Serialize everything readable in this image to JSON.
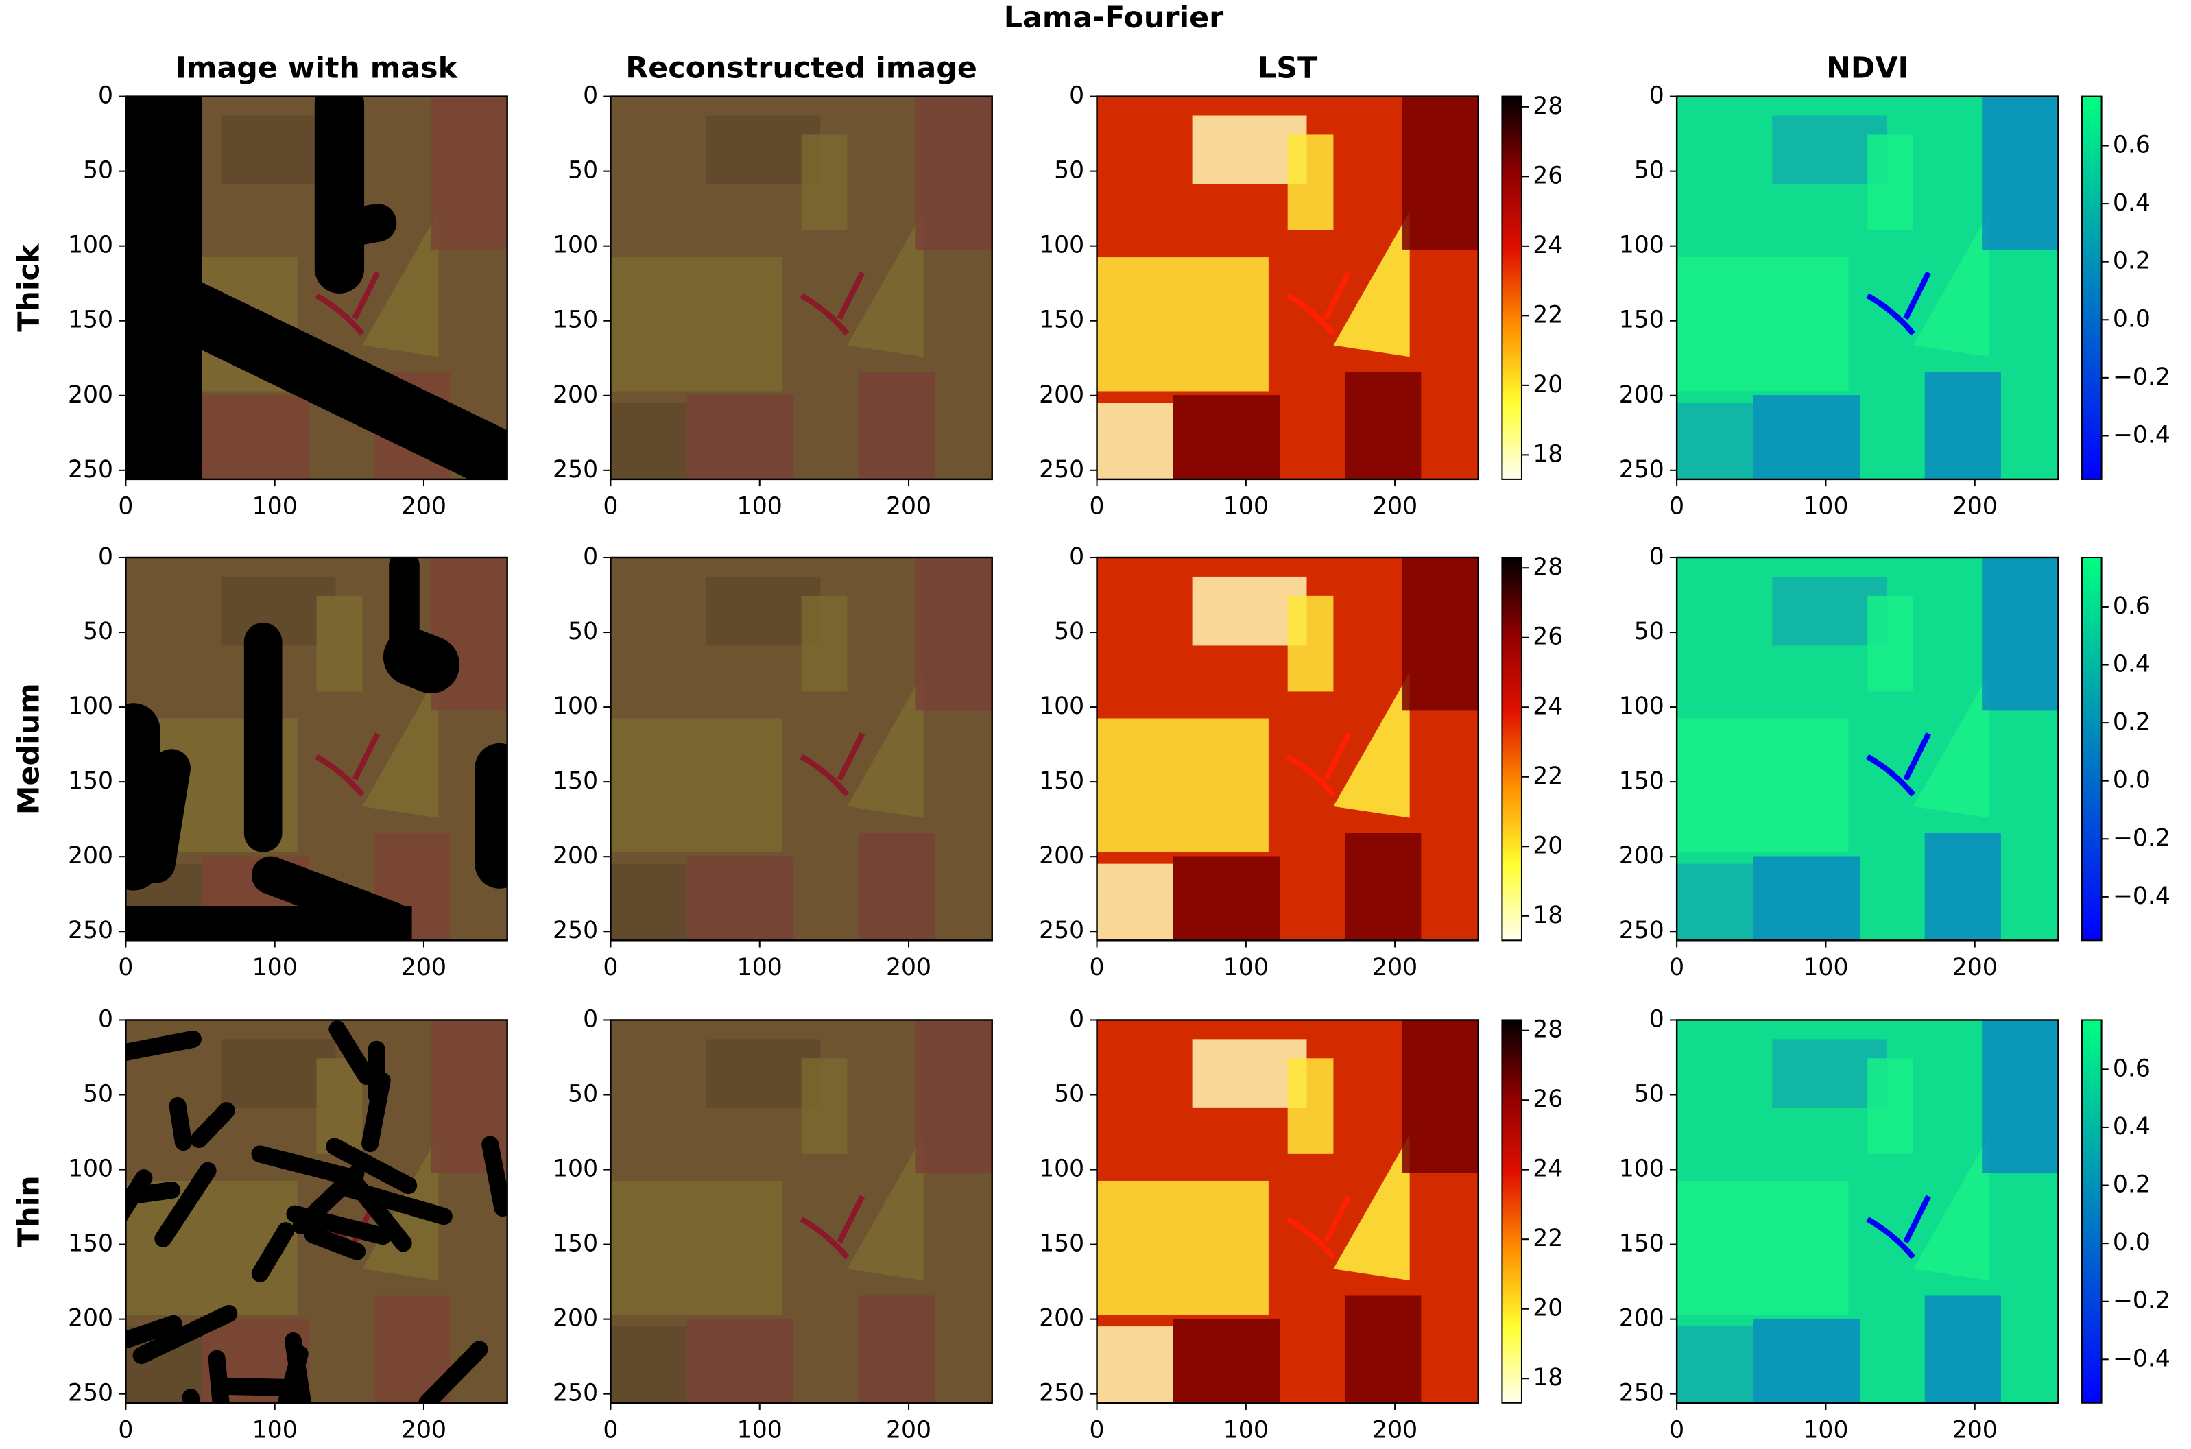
{
  "title": "Lama-Fourier",
  "columns": [
    "Image with mask",
    "Reconstructed image",
    "LST",
    "NDVI"
  ],
  "rows": [
    "Thick",
    "Medium",
    "Thin"
  ],
  "axes": {
    "xlim": [
      0,
      256
    ],
    "xticks": [
      0,
      100,
      200
    ],
    "ylim": [
      256,
      0
    ],
    "yticks": [
      0,
      50,
      100,
      150,
      200,
      250
    ]
  },
  "colorbars": [
    {
      "column": 2,
      "colors": [
        "#fffff0",
        "#ffff30",
        "#ff9000",
        "#e01000",
        "#900000",
        "#000000"
      ],
      "lim": [
        17.3,
        28.3
      ],
      "ticks": [
        18,
        20,
        22,
        24,
        26,
        28
      ]
    },
    {
      "column": 3,
      "colors": [
        "#0000ff",
        "#00ff80"
      ],
      "lim": [
        -0.55,
        0.77
      ],
      "ticks": [
        {
          "value": -0.4,
          "label": "−0.4"
        },
        {
          "value": -0.2,
          "label": "−0.2"
        },
        {
          "value": 0,
          "label": "0.0"
        },
        0.2,
        0.4,
        0.6
      ]
    }
  ]
}
